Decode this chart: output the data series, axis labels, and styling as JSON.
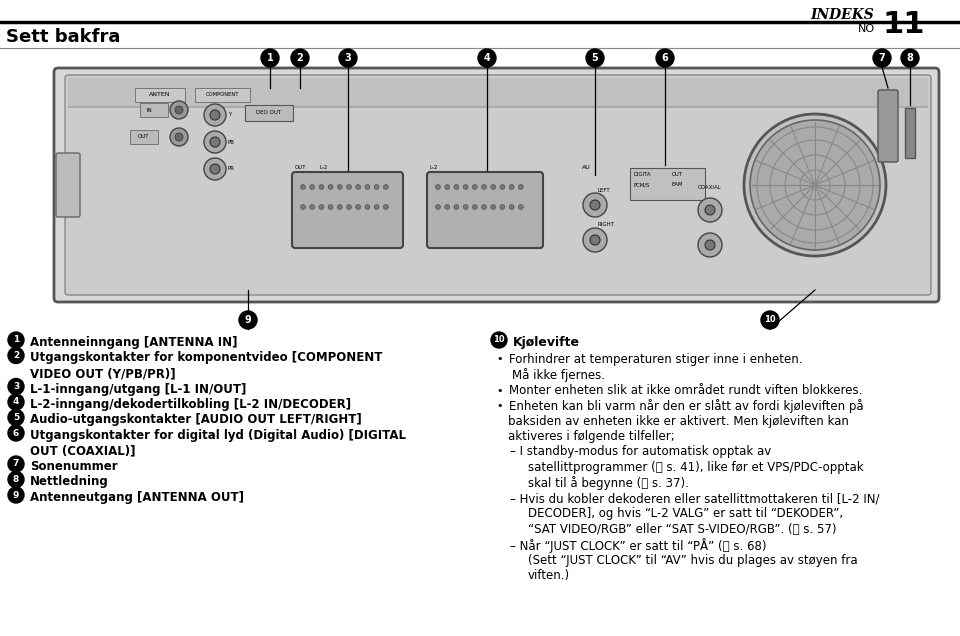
{
  "bg_color": "#ffffff",
  "title_indeks": "INDEKS",
  "title_no": "NO",
  "title_num": "11",
  "page_title": "Sett bakfra",
  "left_items": [
    [
      "1",
      "Antenneinngang [ANTENNA IN]"
    ],
    [
      "2",
      "Utgangskontakter for komponentvideo [COMPONENT\nVIDEO OUT (Y/PB/PR)]"
    ],
    [
      "3",
      "L-1-inngang/utgang [L-1 IN/OUT]"
    ],
    [
      "4",
      "L-2-inngang/dekodertilkobling [L-2 IN/DECODER]"
    ],
    [
      "5",
      "Audio-utgangskontakter [AUDIO OUT LEFT/RIGHT]"
    ],
    [
      "6",
      "Utgangskontakter for digital lyd (Digital Audio) [DIGITAL\nOUT (COAXIAL)]"
    ],
    [
      "7",
      "Sonenummer"
    ],
    [
      "8",
      "Nettledning"
    ],
    [
      "9",
      "Antenneutgang [ANTENNA OUT]"
    ]
  ],
  "right_header_num": "10",
  "right_header": "Kjølevifte",
  "right_bullet1_line1": "Forhindrer at temperaturen stiger inne i enheten.",
  "right_bullet1_line2": "Må ikke fjernes.",
  "right_bullet2": "Monter enheten slik at ikke området rundt viften blokkeres.",
  "right_bullet3_lines": [
    "Enheten kan bli varm når den er slått av fordi kjøleviften på",
    "baksiden av enheten ikke er aktivert. Men kjøleviften kan",
    "aktiveres i følgende tilfeller;"
  ],
  "right_dash1_lines": [
    "I standby-modus for automatisk opptak av",
    "satellittprogrammer (␗ s. 41), like før et VPS/PDC-opptak",
    "skal til å begynne (␗ s. 37)."
  ],
  "right_dash2_lines": [
    "Hvis du kobler dekoderen eller satellittmottakeren til [L-2 IN/",
    "DECODER], og hvis “L-2 VALG” er satt til “DEKODER”,",
    "“SAT VIDEO/RGB” eller “SAT S-VIDEO/RGB”. (␗ s. 57)"
  ],
  "right_dash3_lines": [
    "Når “JUST CLOCK” er satt til “PÅ” (␗ s. 68)",
    "(Sett “JUST CLOCK” til “AV” hvis du plages av støyen fra",
    "viften.)"
  ]
}
